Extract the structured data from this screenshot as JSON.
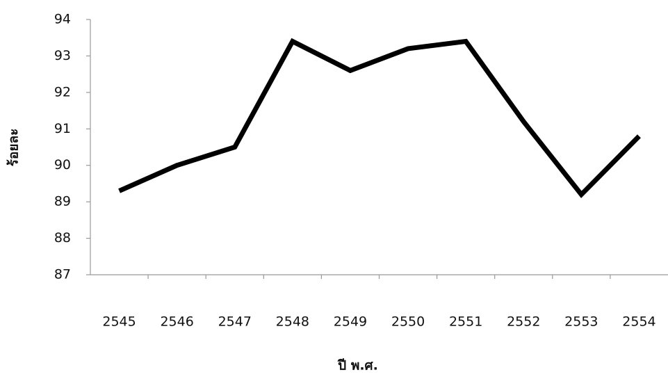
{
  "chart_data": {
    "type": "line",
    "x_label": "ปี พ.ศ.",
    "y_label": "ร้อยละ",
    "categories": [
      "2545",
      "2546",
      "2547",
      "2548",
      "2549",
      "2550",
      "2551",
      "2552",
      "2553",
      "2554"
    ],
    "values": [
      89.3,
      90.0,
      90.5,
      93.4,
      92.6,
      93.2,
      93.4,
      91.2,
      89.2,
      90.8
    ],
    "color": "#000000",
    "ylim": [
      87,
      94
    ],
    "yticks": [
      87,
      88,
      89,
      90,
      91,
      92,
      93,
      94
    ],
    "grid": false
  }
}
